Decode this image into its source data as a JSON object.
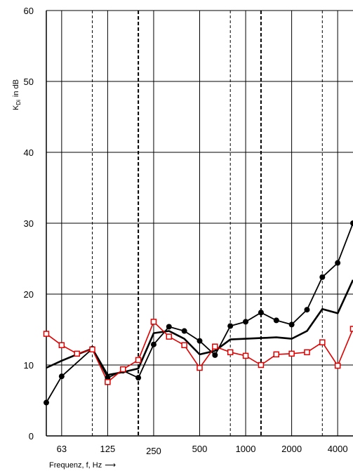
{
  "chart_data": {
    "type": "line",
    "ylabel": "K",
    "ylabel_sub": "Di",
    "ylabel_unit": "in dB",
    "xlabel": "Frequenz,  f,  Hz",
    "xlabel_arrow": "⟶",
    "ylim": [
      0,
      60
    ],
    "yticks": [
      0,
      10,
      20,
      30,
      40,
      50,
      60
    ],
    "x_tick_labels": [
      "63",
      "125",
      "250",
      "500",
      "1000",
      "2000",
      "4000"
    ],
    "x": [
      50,
      63,
      80,
      100,
      125,
      160,
      200,
      250,
      315,
      400,
      500,
      630,
      800,
      1000,
      1250,
      1600,
      2000,
      2500,
      3150,
      4000,
      5000
    ],
    "series": [
      {
        "marker": "circle",
        "color": "#000000",
        "values": [
          4.7,
          8.4,
          null,
          12.3,
          8.2,
          9.2,
          8.2,
          12.9,
          15.4,
          14.8,
          13.4,
          11.4,
          15.5,
          16.1,
          17.4,
          16.3,
          15.7,
          17.8,
          22.4,
          24.4,
          30.0
        ]
      },
      {
        "marker": "none",
        "color": "#000000",
        "values": [
          9.6,
          10.6,
          11.5,
          12.3,
          8.6,
          9.0,
          9.5,
          14.5,
          14.8,
          13.7,
          11.5,
          12.0,
          13.6,
          13.7,
          13.8,
          13.9,
          13.7,
          14.8,
          17.9,
          17.3,
          22.0
        ]
      },
      {
        "marker": "square",
        "color": "#e00000",
        "values": [
          14.4,
          12.8,
          11.6,
          12.2,
          7.6,
          9.4,
          10.7,
          16.1,
          14.0,
          12.8,
          9.6,
          12.6,
          11.8,
          11.3,
          10.0,
          11.5,
          11.6,
          11.8,
          13.2,
          9.9,
          15.1
        ]
      }
    ]
  }
}
